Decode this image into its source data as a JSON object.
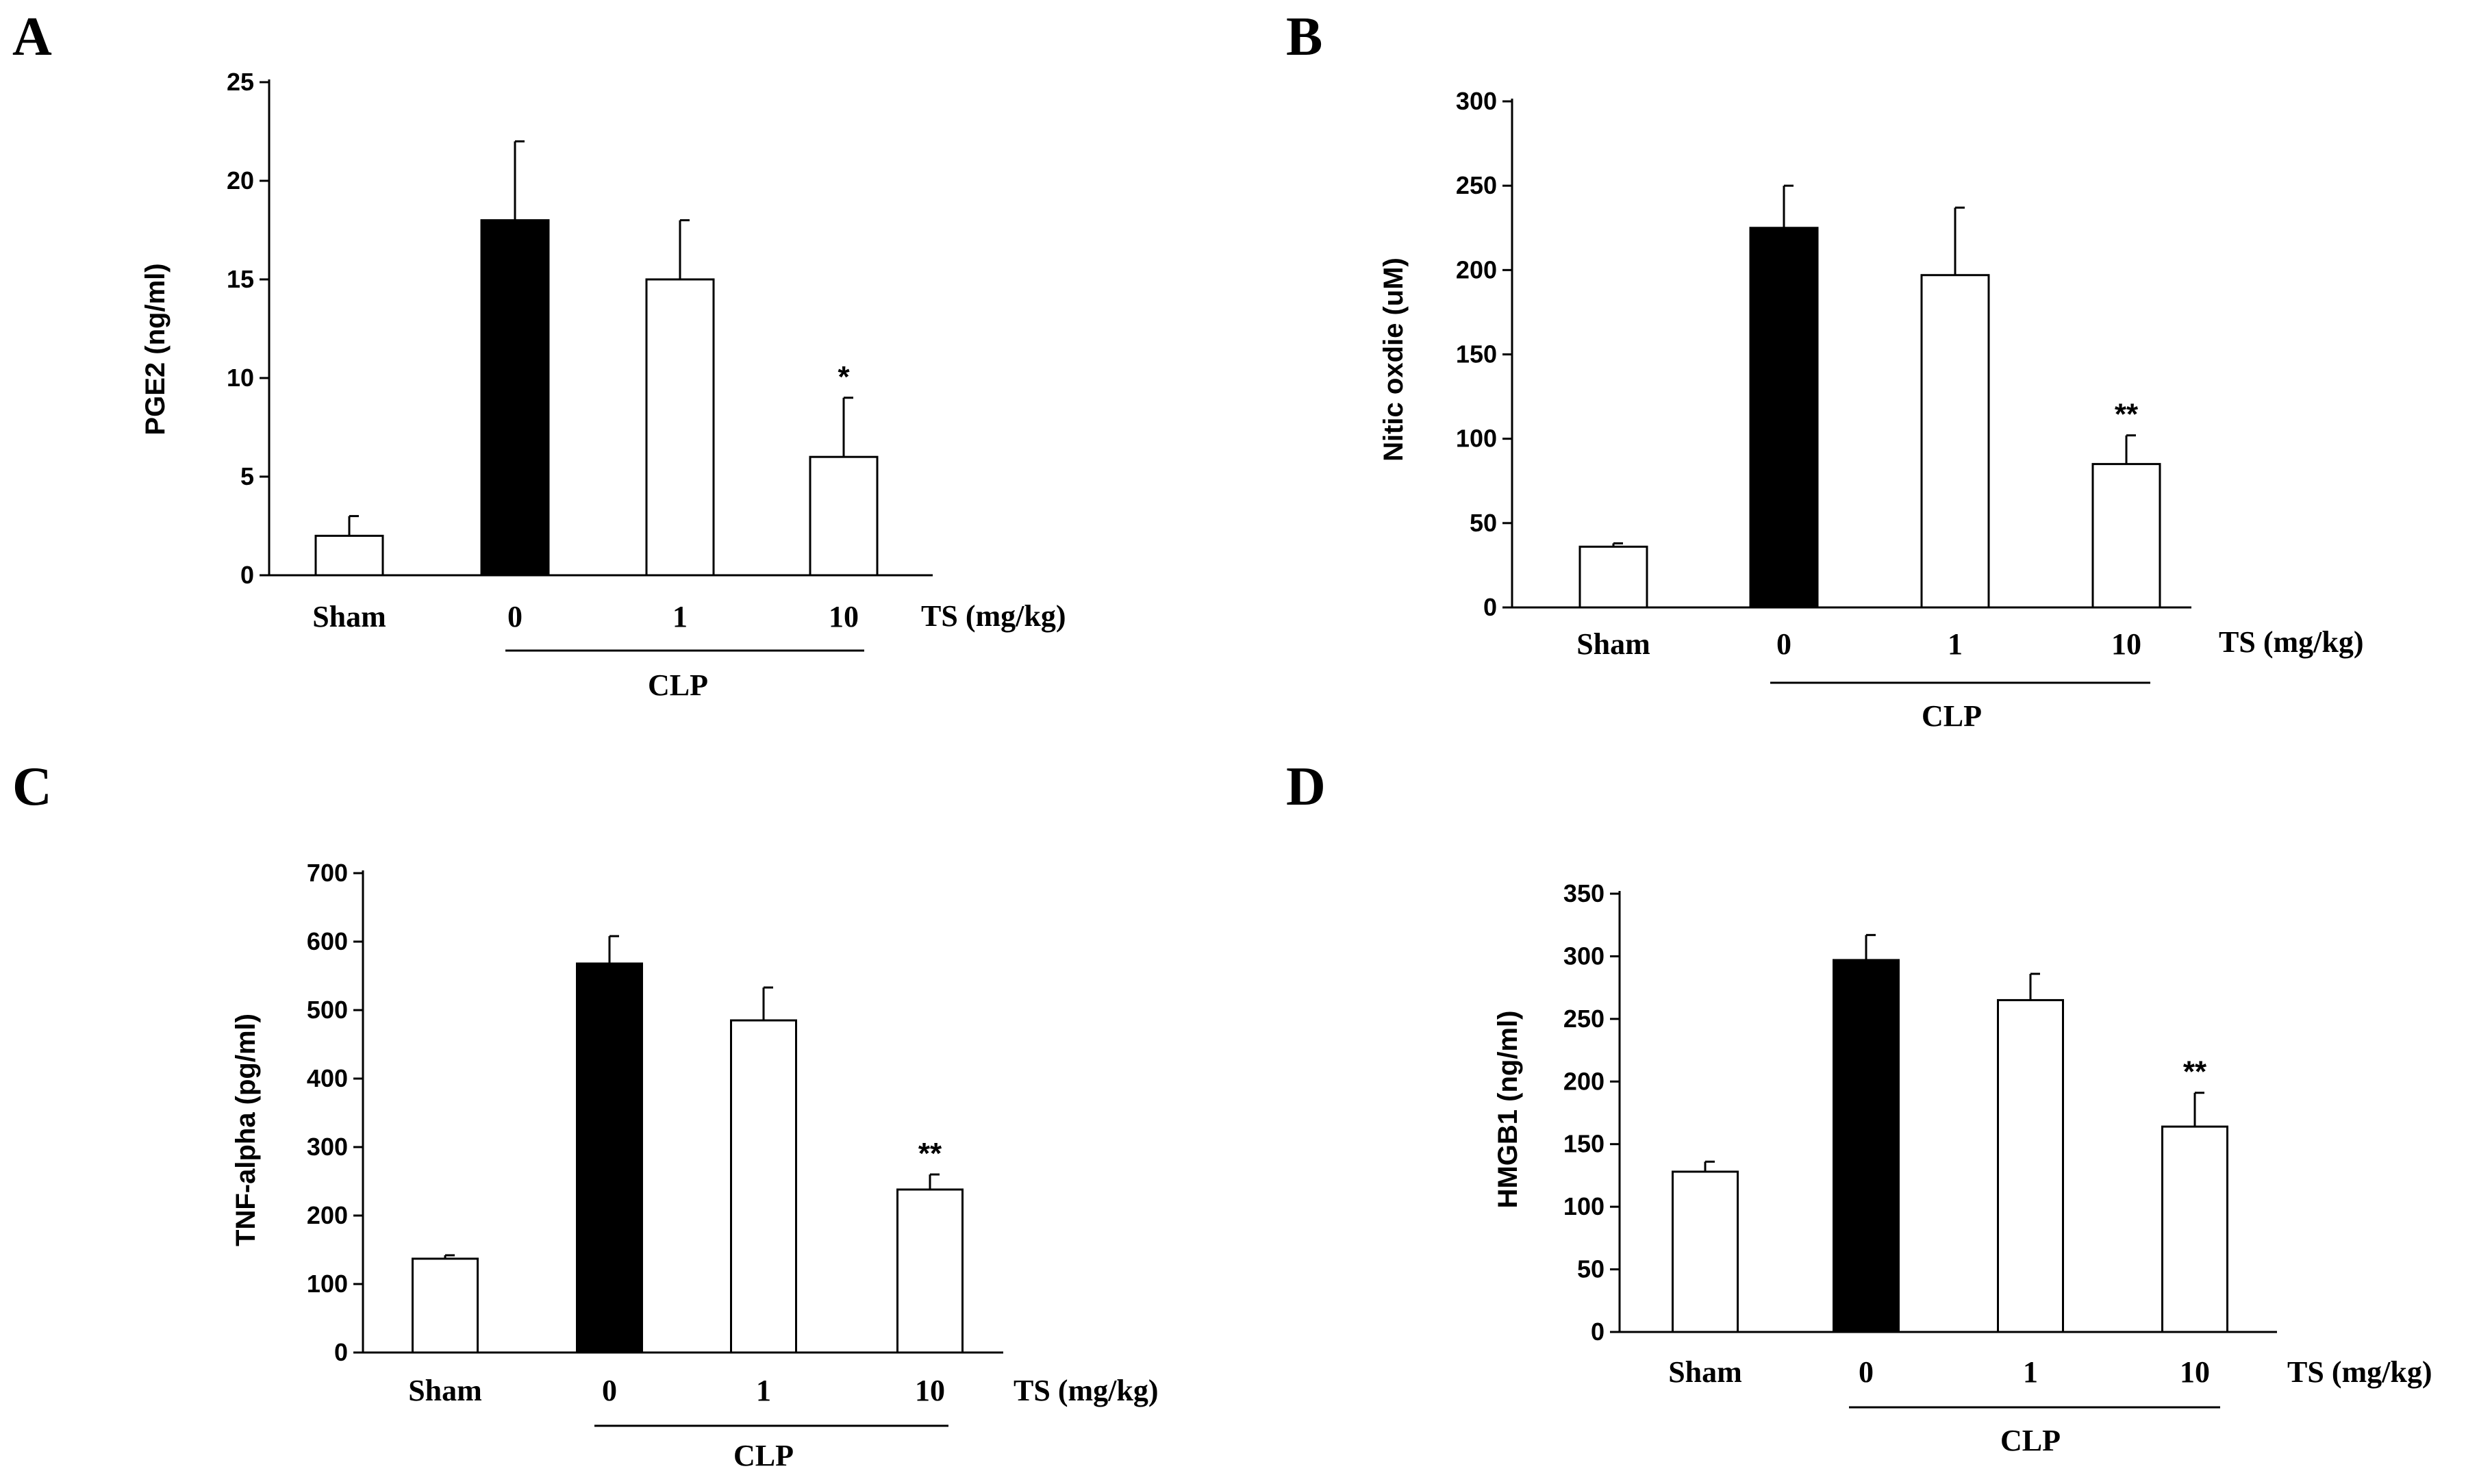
{
  "figure": {
    "background": "#ffffff",
    "filled_bar_color": "#000000",
    "open_bar_color": "#ffffff"
  },
  "chart_data": [
    {
      "panel": "A",
      "type": "bar",
      "categories": [
        "Sham",
        "0",
        "1",
        "10"
      ],
      "values": [
        2,
        18,
        15,
        6
      ],
      "errors": [
        1,
        4,
        3,
        3
      ],
      "filled": [
        false,
        true,
        false,
        false
      ],
      "significance": [
        "",
        "",
        "",
        "*"
      ],
      "ylabel": "PGE2  (ng/ml)",
      "ylim": [
        0,
        25
      ],
      "yticks": [
        0,
        5,
        10,
        15,
        20,
        25
      ],
      "x_axis_title": "TS (mg/kg)",
      "group_label": "CLP",
      "grid": false
    },
    {
      "panel": "B",
      "type": "bar",
      "categories": [
        "Sham",
        "0",
        "1",
        "10"
      ],
      "values": [
        36,
        225,
        197,
        85
      ],
      "errors": [
        2,
        25,
        40,
        17
      ],
      "filled": [
        false,
        true,
        false,
        false
      ],
      "significance": [
        "",
        "",
        "",
        "**"
      ],
      "ylabel": "Nitic oxdie (uM)",
      "ylim": [
        0,
        300
      ],
      "yticks": [
        0,
        50,
        100,
        150,
        200,
        250,
        300
      ],
      "x_axis_title": "TS (mg/kg)",
      "group_label": "CLP",
      "grid": false
    },
    {
      "panel": "C",
      "type": "bar",
      "categories": [
        "Sham",
        "0",
        "1",
        "10"
      ],
      "values": [
        137,
        568,
        485,
        238
      ],
      "errors": [
        5,
        40,
        48,
        22
      ],
      "filled": [
        false,
        true,
        false,
        false
      ],
      "significance": [
        "",
        "",
        "",
        "**"
      ],
      "ylabel": "TNF-alpha (pg/ml)",
      "ylim": [
        0,
        700
      ],
      "yticks": [
        0,
        100,
        200,
        300,
        400,
        500,
        600,
        700
      ],
      "x_axis_title": "TS (mg/kg)",
      "group_label": "CLP",
      "grid": false
    },
    {
      "panel": "D",
      "type": "bar",
      "categories": [
        "Sham",
        "0",
        "1",
        "10"
      ],
      "values": [
        128,
        297,
        265,
        164
      ],
      "errors": [
        8,
        20,
        21,
        27
      ],
      "filled": [
        false,
        true,
        false,
        false
      ],
      "significance": [
        "",
        "",
        "",
        "**"
      ],
      "ylabel": "HMGB1 (ng/ml)",
      "ylim": [
        0,
        350
      ],
      "yticks": [
        0,
        50,
        100,
        150,
        200,
        250,
        300,
        350
      ],
      "x_axis_title": "TS (mg/kg)",
      "group_label": "CLP",
      "grid": false
    }
  ]
}
